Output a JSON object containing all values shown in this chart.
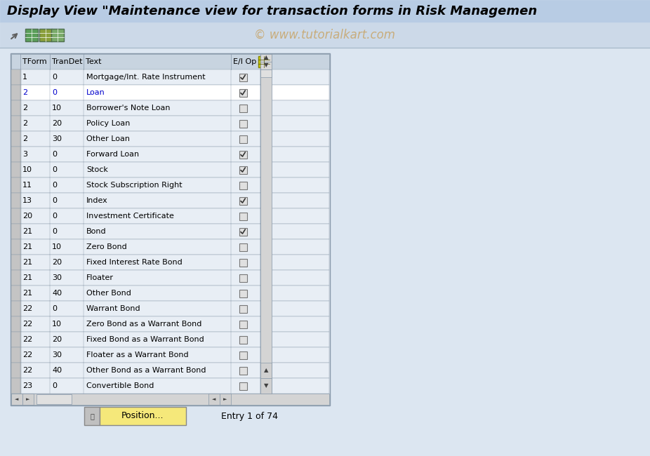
{
  "title": "Display View \"Maintenance view for transaction forms in Risk Managemen",
  "watermark": "© www.tutorialkart.com",
  "bg_color": "#dce6f1",
  "header_bg": "#b8cce4",
  "toolbar_bg": "#ccd9e8",
  "table_bg": "#e8eef5",
  "table_header_bg": "#c8d4e0",
  "table_border": "#8899aa",
  "columns": [
    "TForm",
    "TranDet",
    "Text",
    "E/I Op"
  ],
  "rows": [
    [
      "1",
      "0",
      "Mortgage/Int. Rate Instrument",
      true
    ],
    [
      "2",
      "0",
      "Loan",
      true
    ],
    [
      "2",
      "10",
      "Borrower's Note Loan",
      false
    ],
    [
      "2",
      "20",
      "Policy Loan",
      false
    ],
    [
      "2",
      "30",
      "Other Loan",
      false
    ],
    [
      "3",
      "0",
      "Forward Loan",
      true
    ],
    [
      "10",
      "0",
      "Stock",
      true
    ],
    [
      "11",
      "0",
      "Stock Subscription Right",
      false
    ],
    [
      "13",
      "0",
      "Index",
      true
    ],
    [
      "20",
      "0",
      "Investment Certificate",
      false
    ],
    [
      "21",
      "0",
      "Bond",
      true
    ],
    [
      "21",
      "10",
      "Zero Bond",
      false
    ],
    [
      "21",
      "20",
      "Fixed Interest Rate Bond",
      false
    ],
    [
      "21",
      "30",
      "Floater",
      false
    ],
    [
      "21",
      "40",
      "Other Bond",
      false
    ],
    [
      "22",
      "0",
      "Warrant Bond",
      false
    ],
    [
      "22",
      "10",
      "Zero Bond as a Warrant Bond",
      false
    ],
    [
      "22",
      "20",
      "Fixed Bond as a Warrant Bond",
      false
    ],
    [
      "22",
      "30",
      "Floater as a Warrant Bond",
      false
    ],
    [
      "22",
      "40",
      "Other Bond as a Warrant Bond",
      false
    ],
    [
      "23",
      "0",
      "Convertible Bond",
      false
    ]
  ],
  "highlighted_rows": [
    1
  ],
  "highlight_color": "#ffffff",
  "highlight_text_color": "#0000cc",
  "position_btn_text": "Position...",
  "entry_text": "Entry 1 of 74"
}
